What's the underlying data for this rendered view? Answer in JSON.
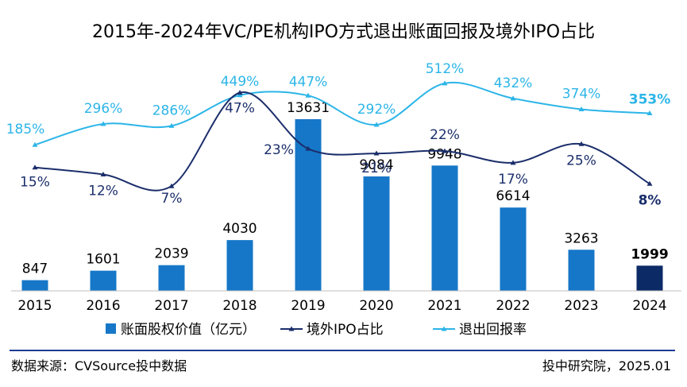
{
  "title": "2015年-2024年VC/PE机构IPO方式退出账面回报及境外IPO占比",
  "source": "数据来源：CVSource投中数据",
  "credit": "投中研究院，2025.01",
  "colors": {
    "bar": "#1677c8",
    "bar_highlight": "#0b2a66",
    "overseas_line": "#1b2e6b",
    "return_line": "#2cb5e8"
  },
  "chart_data": {
    "type": "bar+line",
    "categories": [
      "2015",
      "2016",
      "2017",
      "2018",
      "2019",
      "2020",
      "2021",
      "2022",
      "2023",
      "2024"
    ],
    "series": [
      {
        "name": "账面股权价值（亿元）",
        "type": "bar",
        "values": [
          847,
          1601,
          2039,
          4030,
          13631,
          9084,
          9948,
          6614,
          3263,
          1999
        ],
        "labels": [
          "847",
          "1601",
          "2039",
          "4030",
          "13631",
          "9084",
          "9948",
          "6614",
          "3263",
          "1999"
        ]
      },
      {
        "name": "境外IPO占比",
        "type": "line",
        "values": [
          15,
          12,
          7,
          47,
          23,
          21,
          22,
          17,
          25,
          8
        ],
        "labels": [
          "15%",
          "12%",
          "7%",
          "47%",
          "23%",
          "21%",
          "22%",
          "17%",
          "25%",
          "8%"
        ]
      },
      {
        "name": "退出回报率",
        "type": "line",
        "values": [
          185,
          296,
          286,
          449,
          447,
          292,
          512,
          432,
          374,
          353
        ],
        "labels": [
          "185%",
          "296%",
          "286%",
          "449%",
          "447%",
          "292%",
          "512%",
          "432%",
          "374%",
          "353%"
        ]
      }
    ],
    "legend_position": "bottom",
    "grid": false
  }
}
